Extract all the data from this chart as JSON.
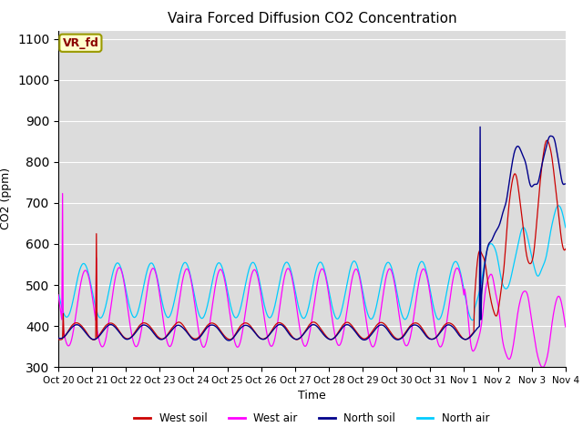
{
  "title": "Vaira Forced Diffusion CO2 Concentration",
  "xlabel": "Time",
  "ylabel": "CO2 (ppm)",
  "ylim": [
    300,
    1120
  ],
  "yticks": [
    300,
    400,
    500,
    600,
    700,
    800,
    900,
    1000,
    1100
  ],
  "background_color": "#dcdcdc",
  "legend_labels": [
    "West soil",
    "West air",
    "North soil",
    "North air"
  ],
  "series_colors": [
    "#cc0000",
    "#ff00ff",
    "#00008b",
    "#00ccff"
  ],
  "annotation_text": "VR_fd",
  "tick_labels": [
    "Oct 20",
    "Oct 21",
    "Oct 22",
    "Oct 23",
    "Oct 24",
    "Oct 25",
    "Oct 26",
    "Oct 27",
    "Oct 28",
    "Oct 29",
    "Oct 30",
    "Oct 31",
    "Nov 1",
    "Nov 2",
    "Nov 3",
    "Nov 4"
  ]
}
